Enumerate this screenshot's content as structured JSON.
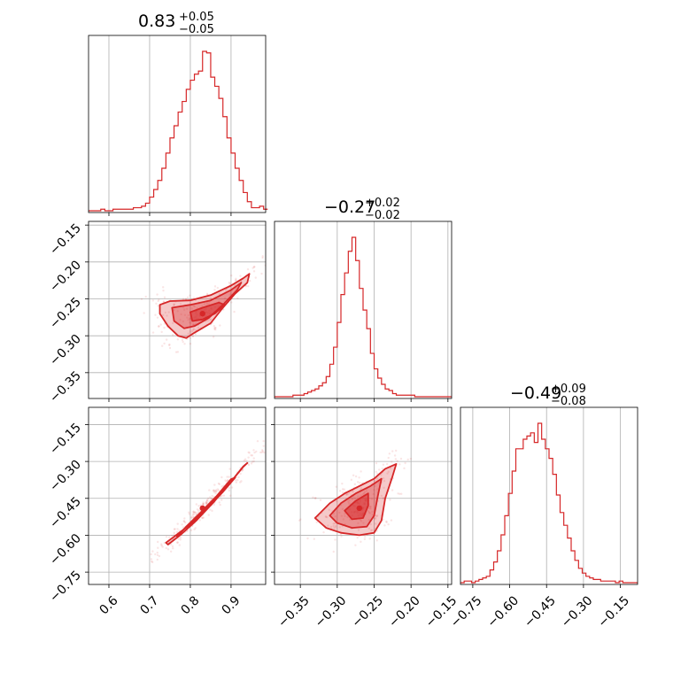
{
  "chart_data": {
    "type": "corner",
    "color": "#d62728",
    "grid": true,
    "parameters": [
      {
        "title": {
          "median": "0.83",
          "plus": "+0.05",
          "minus": "−0.05"
        },
        "range": [
          0.55,
          0.985
        ],
        "ticks": [
          0.6,
          0.7,
          0.8,
          0.9
        ],
        "tick_labels": [
          "0.6",
          "0.7",
          "0.8",
          "0.9"
        ],
        "histogram": {
          "bins": [
            0.55,
            0.56,
            0.57,
            0.58,
            0.59,
            0.6,
            0.61,
            0.62,
            0.63,
            0.64,
            0.65,
            0.66,
            0.67,
            0.68,
            0.69,
            0.7,
            0.71,
            0.72,
            0.73,
            0.74,
            0.75,
            0.76,
            0.77,
            0.78,
            0.79,
            0.8,
            0.81,
            0.82,
            0.83,
            0.84,
            0.85,
            0.86,
            0.87,
            0.88,
            0.89,
            0.9,
            0.91,
            0.92,
            0.93,
            0.94,
            0.95,
            0.96,
            0.97,
            0.98
          ],
          "counts": [
            0,
            0,
            0,
            1,
            0,
            0,
            1,
            1,
            1,
            1,
            1,
            2,
            2,
            3,
            5,
            9,
            14,
            20,
            28,
            38,
            48,
            56,
            65,
            72,
            80,
            86,
            90,
            92,
            105,
            104,
            88,
            82,
            74,
            62,
            48,
            38,
            28,
            20,
            12,
            6,
            2,
            2,
            3,
            1
          ]
        }
      },
      {
        "title": {
          "median": "−0.27",
          "plus": "+0.02",
          "minus": "−0.02"
        },
        "range": [
          -0.385,
          -0.145
        ],
        "ticks": [
          -0.35,
          -0.3,
          -0.25,
          -0.2,
          -0.15
        ],
        "tick_labels": [
          "−0.35",
          "−0.30",
          "−0.25",
          "−0.20",
          "−0.15"
        ],
        "histogram": {
          "bins": [
            -0.385,
            -0.38,
            -0.375,
            -0.37,
            -0.365,
            -0.36,
            -0.355,
            -0.35,
            -0.345,
            -0.34,
            -0.335,
            -0.33,
            -0.325,
            -0.32,
            -0.315,
            -0.31,
            -0.305,
            -0.3,
            -0.295,
            -0.29,
            -0.285,
            -0.28,
            -0.275,
            -0.27,
            -0.265,
            -0.26,
            -0.255,
            -0.25,
            -0.245,
            -0.24,
            -0.235,
            -0.23,
            -0.225,
            -0.22,
            -0.215,
            -0.21,
            -0.205,
            -0.2,
            -0.195,
            -0.19,
            -0.185,
            -0.18,
            -0.175,
            -0.17,
            -0.165,
            -0.16,
            -0.155,
            -0.15
          ],
          "counts": [
            0,
            0,
            0,
            0,
            0,
            1,
            1,
            1,
            2,
            3,
            4,
            5,
            7,
            9,
            13,
            21,
            32,
            48,
            66,
            80,
            94,
            103,
            88,
            70,
            56,
            44,
            28,
            18,
            12,
            8,
            5,
            4,
            2,
            1,
            1,
            1,
            1,
            1,
            0,
            0,
            0,
            0,
            0,
            0,
            0,
            0,
            0,
            0
          ]
        }
      },
      {
        "title": {
          "median": "−0.49",
          "plus": "+0.09",
          "minus": "−0.08"
        },
        "range": [
          -0.8,
          -0.08
        ],
        "ticks": [
          -0.75,
          -0.6,
          -0.45,
          -0.3,
          -0.15
        ],
        "tick_labels": [
          "−0.75",
          "−0.60",
          "−0.45",
          "−0.30",
          "−0.15"
        ],
        "histogram": {
          "bins": [
            -0.8,
            -0.785,
            -0.77,
            -0.755,
            -0.74,
            -0.725,
            -0.71,
            -0.695,
            -0.68,
            -0.665,
            -0.65,
            -0.635,
            -0.62,
            -0.605,
            -0.59,
            -0.575,
            -0.56,
            -0.545,
            -0.53,
            -0.515,
            -0.5,
            -0.485,
            -0.47,
            -0.455,
            -0.44,
            -0.425,
            -0.41,
            -0.395,
            -0.38,
            -0.365,
            -0.35,
            -0.335,
            -0.32,
            -0.305,
            -0.29,
            -0.275,
            -0.26,
            -0.245,
            -0.23,
            -0.215,
            -0.2,
            -0.185,
            -0.17,
            -0.155,
            -0.14,
            -0.125,
            -0.11,
            -0.095
          ],
          "counts": [
            0,
            1,
            1,
            0,
            1,
            2,
            3,
            4,
            8,
            13,
            20,
            30,
            42,
            56,
            70,
            84,
            84,
            90,
            92,
            94,
            88,
            100,
            90,
            84,
            78,
            68,
            55,
            44,
            36,
            28,
            20,
            14,
            9,
            6,
            4,
            3,
            2,
            2,
            1,
            1,
            1,
            1,
            0,
            1,
            0,
            0,
            0,
            0
          ]
        }
      }
    ],
    "pairs": [
      {
        "row": 1,
        "col": 0,
        "center": [
          0.83,
          -0.27
        ],
        "contours": [
          {
            "level": "outer",
            "points": [
              [
                0.725,
                -0.258
              ],
              [
                0.75,
                -0.253
              ],
              [
                0.8,
                -0.252
              ],
              [
                0.85,
                -0.245
              ],
              [
                0.9,
                -0.232
              ],
              [
                0.93,
                -0.222
              ],
              [
                0.945,
                -0.216
              ],
              [
                0.94,
                -0.228
              ],
              [
                0.91,
                -0.243
              ],
              [
                0.88,
                -0.262
              ],
              [
                0.85,
                -0.283
              ],
              [
                0.81,
                -0.296
              ],
              [
                0.79,
                -0.303
              ],
              [
                0.77,
                -0.3
              ],
              [
                0.745,
                -0.287
              ],
              [
                0.725,
                -0.27
              ]
            ]
          },
          {
            "level": "middle",
            "points": [
              [
                0.755,
                -0.262
              ],
              [
                0.8,
                -0.258
              ],
              [
                0.85,
                -0.252
              ],
              [
                0.9,
                -0.238
              ],
              [
                0.925,
                -0.228
              ],
              [
                0.915,
                -0.238
              ],
              [
                0.88,
                -0.258
              ],
              [
                0.845,
                -0.276
              ],
              [
                0.81,
                -0.287
              ],
              [
                0.785,
                -0.29
              ],
              [
                0.76,
                -0.28
              ]
            ]
          },
          {
            "level": "inner",
            "points": [
              [
                0.8,
                -0.268
              ],
              [
                0.83,
                -0.262
              ],
              [
                0.87,
                -0.255
              ],
              [
                0.885,
                -0.258
              ],
              [
                0.86,
                -0.27
              ],
              [
                0.83,
                -0.278
              ],
              [
                0.805,
                -0.28
              ]
            ]
          }
        ]
      },
      {
        "row": 2,
        "col": 0,
        "center": [
          0.83,
          -0.49
        ],
        "contours": [
          {
            "level": "outer",
            "points": [
              [
                0.74,
                -0.63
              ],
              [
                0.78,
                -0.582
              ],
              [
                0.82,
                -0.522
              ],
              [
                0.86,
                -0.455
              ],
              [
                0.9,
                -0.382
              ],
              [
                0.93,
                -0.322
              ],
              [
                0.94,
                -0.306
              ],
              [
                0.93,
                -0.32
              ],
              [
                0.895,
                -0.392
              ],
              [
                0.855,
                -0.47
              ],
              [
                0.815,
                -0.54
              ],
              [
                0.775,
                -0.6
              ],
              [
                0.745,
                -0.638
              ]
            ]
          },
          {
            "level": "middle",
            "points": [
              [
                0.765,
                -0.6
              ],
              [
                0.8,
                -0.556
              ],
              [
                0.84,
                -0.492
              ],
              [
                0.88,
                -0.424
              ],
              [
                0.91,
                -0.366
              ],
              [
                0.9,
                -0.372
              ],
              [
                0.865,
                -0.44
              ],
              [
                0.825,
                -0.508
              ],
              [
                0.79,
                -0.565
              ],
              [
                0.768,
                -0.605
              ]
            ]
          },
          {
            "level": "inner",
            "points": [
              [
                0.8,
                -0.555
              ],
              [
                0.83,
                -0.51
              ],
              [
                0.86,
                -0.46
              ],
              [
                0.855,
                -0.465
              ],
              [
                0.825,
                -0.515
              ],
              [
                0.8,
                -0.56
              ]
            ]
          }
        ]
      },
      {
        "row": 2,
        "col": 1,
        "center": [
          -0.27,
          -0.49
        ],
        "contours": [
          {
            "level": "outer",
            "points": [
              [
                -0.33,
                -0.53
              ],
              [
                -0.31,
                -0.47
              ],
              [
                -0.29,
                -0.43
              ],
              [
                -0.27,
                -0.4
              ],
              [
                -0.25,
                -0.37
              ],
              [
                -0.235,
                -0.33
              ],
              [
                -0.22,
                -0.31
              ],
              [
                -0.225,
                -0.36
              ],
              [
                -0.235,
                -0.45
              ],
              [
                -0.24,
                -0.54
              ],
              [
                -0.25,
                -0.59
              ],
              [
                -0.27,
                -0.6
              ],
              [
                -0.295,
                -0.59
              ],
              [
                -0.315,
                -0.57
              ]
            ]
          },
          {
            "level": "middle",
            "points": [
              [
                -0.31,
                -0.52
              ],
              [
                -0.295,
                -0.47
              ],
              [
                -0.275,
                -0.43
              ],
              [
                -0.255,
                -0.4
              ],
              [
                -0.24,
                -0.37
              ],
              [
                -0.245,
                -0.44
              ],
              [
                -0.25,
                -0.52
              ],
              [
                -0.26,
                -0.565
              ],
              [
                -0.28,
                -0.57
              ],
              [
                -0.3,
                -0.55
              ]
            ]
          },
          {
            "level": "inner",
            "points": [
              [
                -0.29,
                -0.5
              ],
              [
                -0.275,
                -0.46
              ],
              [
                -0.258,
                -0.43
              ],
              [
                -0.258,
                -0.48
              ],
              [
                -0.265,
                -0.53
              ],
              [
                -0.28,
                -0.535
              ]
            ]
          }
        ]
      }
    ]
  }
}
